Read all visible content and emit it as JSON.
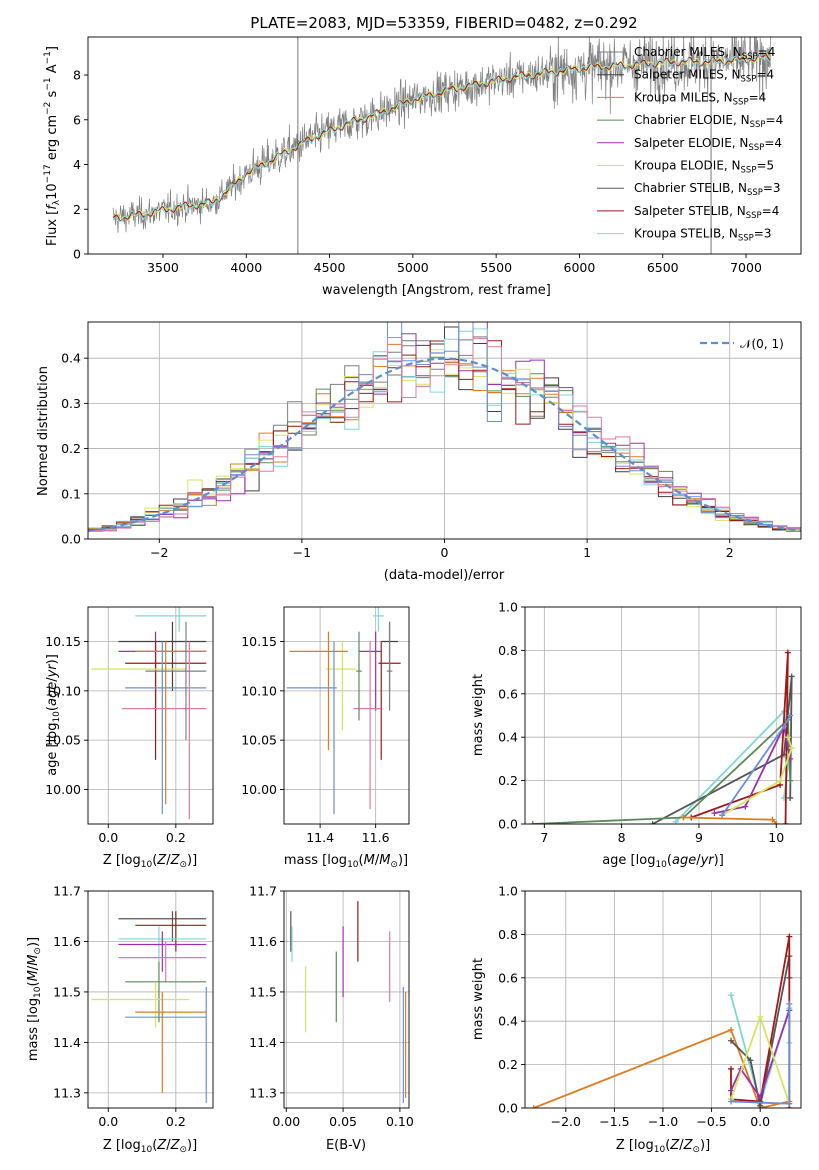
{
  "colors": {
    "Chabrier MILES": "#7f7f7f",
    "Salpeter MILES": "#404040",
    "Kroupa MILES": "#e07b1f",
    "Chabrier ELODIE": "#5b8a5b",
    "Salpeter ELODIE": "#9b30b0",
    "Kroupa ELODIE": "#d6e65c",
    "Chabrier STELIB": "#555555",
    "Salpeter STELIB": "#a01818",
    "Kroupa STELIB": "#7fd6d6",
    "extra_blue": "#6a8fd8",
    "extra_pink": "#e07aa8",
    "normal_curve": "#5b8fd0"
  },
  "chart_data": [
    {
      "id": "spectrum",
      "type": "line",
      "title": "PLATE=2083, MJD=53359, FIBERID=0482, z=0.292",
      "xlabel": "wavelength [Angstrom, rest frame]",
      "ylabel": "Flux [f_λ 10^-17 erg cm^-2 s^-1 A^-1]",
      "xlim": [
        3050,
        7330
      ],
      "ylim": [
        0,
        9.7
      ],
      "xticks": [
        "3500",
        "4000",
        "4500",
        "5000",
        "5500",
        "6000",
        "6500",
        "7000"
      ],
      "yticks": [
        "0",
        "2",
        "4",
        "6",
        "8"
      ],
      "grid": false,
      "legend_position": "right",
      "legend": [
        {
          "label": "Chabrier MILES, N",
          "sub": "SSP",
          "tail": "=4"
        },
        {
          "label": "Salpeter MILES, N",
          "sub": "SSP",
          "tail": "=4"
        },
        {
          "label": "Kroupa MILES, N",
          "sub": "SSP",
          "tail": "=4"
        },
        {
          "label": "Chabrier ELODIE, N",
          "sub": "SSP",
          "tail": "=4"
        },
        {
          "label": "Salpeter ELODIE, N",
          "sub": "SSP",
          "tail": "=4"
        },
        {
          "label": "Kroupa ELODIE, N",
          "sub": "SSP",
          "tail": "=5"
        },
        {
          "label": "Chabrier STELIB, N",
          "sub": "SSP",
          "tail": "=3"
        },
        {
          "label": "Salpeter STELIB, N",
          "sub": "SSP",
          "tail": "=4"
        },
        {
          "label": "Kroupa STELIB, N",
          "sub": "SSP",
          "tail": "=3"
        }
      ],
      "continuum": [
        [
          3200,
          1.6
        ],
        [
          3400,
          1.8
        ],
        [
          3600,
          2.1
        ],
        [
          3800,
          2.3
        ],
        [
          3900,
          2.9
        ],
        [
          4000,
          3.6
        ],
        [
          4200,
          4.4
        ],
        [
          4400,
          5.2
        ],
        [
          4600,
          5.8
        ],
        [
          4800,
          6.3
        ],
        [
          5000,
          6.9
        ],
        [
          5200,
          7.3
        ],
        [
          5400,
          7.6
        ],
        [
          5600,
          7.9
        ],
        [
          5800,
          8.1
        ],
        [
          6000,
          8.3
        ],
        [
          6200,
          8.4
        ],
        [
          6400,
          8.5
        ],
        [
          6600,
          8.6
        ],
        [
          6800,
          8.6
        ],
        [
          7000,
          8.7
        ],
        [
          7150,
          8.8
        ]
      ],
      "spikes": [
        [
          4310,
          9.7
        ],
        [
          6790,
          9.7
        ]
      ]
    },
    {
      "id": "residuals",
      "type": "histogram",
      "xlabel": "(data-model)/error",
      "ylabel": "Normed distribution",
      "xlim": [
        -2.5,
        2.5
      ],
      "ylim": [
        0,
        0.48
      ],
      "xticks": [
        "−2",
        "−1",
        "0",
        "1",
        "2"
      ],
      "yticks": [
        "0.0",
        "0.1",
        "0.2",
        "0.3",
        "0.4"
      ],
      "grid": true,
      "legend_label": "𝒩(0, 1)",
      "legend_position": "top-right",
      "bin_width": 0.1,
      "normal": {
        "mean": 0,
        "sigma": 1
      }
    },
    {
      "id": "age_vs_Z",
      "type": "errorbar",
      "xlabel": "Z [log10(Z/Z⊙)]",
      "ylabel": "age [log10(age/yr)]",
      "xlim": [
        -0.06,
        0.31
      ],
      "ylim": [
        9.965,
        10.185
      ],
      "xticks": [
        "0.0",
        "0.2"
      ],
      "yticks": [
        "10.00",
        "10.05",
        "10.10",
        "10.15"
      ],
      "grid": true,
      "points": [
        {
          "x": 0.21,
          "y": 10.176,
          "ex": [
            0.08,
            0.29
          ],
          "ey": [
            10.16,
            10.185
          ],
          "c": "Kroupa STELIB"
        },
        {
          "x": 0.19,
          "y": 10.15,
          "ex": [
            0.03,
            0.29
          ],
          "ey": [
            10.1,
            10.17
          ],
          "c": "Salpeter MILES"
        },
        {
          "x": 0.14,
          "y": 10.14,
          "ex": [
            0.03,
            0.29
          ],
          "ey": [
            10.08,
            10.16
          ],
          "c": "Salpeter ELODIE"
        },
        {
          "x": 0.14,
          "y": 10.128,
          "ex": [
            0.05,
            0.29
          ],
          "ey": [
            10.03,
            10.15
          ],
          "c": "Salpeter STELIB"
        },
        {
          "x": 0.16,
          "y": 10.122,
          "ex": [
            -0.05,
            0.23
          ],
          "ey": [
            10.06,
            10.15
          ],
          "c": "Kroupa ELODIE"
        },
        {
          "x": 0.17,
          "y": 10.14,
          "ex": [
            0.08,
            0.29
          ],
          "ey": [
            9.985,
            10.15
          ],
          "c": "Kroupa MILES"
        },
        {
          "x": 0.16,
          "y": 10.103,
          "ex": [
            0.05,
            0.29
          ],
          "ey": [
            9.975,
            10.15
          ],
          "c": "extra_blue"
        },
        {
          "x": 0.24,
          "y": 10.082,
          "ex": [
            0.04,
            0.29
          ],
          "ey": [
            9.97,
            10.15
          ],
          "c": "extra_pink"
        },
        {
          "x": 0.23,
          "y": 10.12,
          "ex": [
            0.11,
            0.29
          ],
          "ey": [
            10.05,
            10.17
          ],
          "c": "Chabrier MILES"
        }
      ]
    },
    {
      "id": "age_vs_mass",
      "type": "errorbar",
      "xlabel": "mass [log10(M/M⊙)]",
      "ylabel": "",
      "xlim": [
        11.27,
        11.72
      ],
      "ylim": [
        9.965,
        10.185
      ],
      "xticks": [
        "11.4",
        "11.6"
      ],
      "yticks": [
        "10.00",
        "10.05",
        "10.10",
        "10.15"
      ],
      "grid": true,
      "points": [
        {
          "x": 11.61,
          "y": 10.176,
          "ex": [
            11.59,
            11.63
          ],
          "ey": [
            10.16,
            10.185
          ],
          "c": "Kroupa STELIB"
        },
        {
          "x": 11.65,
          "y": 10.15,
          "ex": [
            11.62,
            11.68
          ],
          "ey": [
            10.1,
            10.17
          ],
          "c": "Salpeter MILES"
        },
        {
          "x": 11.6,
          "y": 10.14,
          "ex": [
            11.54,
            11.62
          ],
          "ey": [
            10.08,
            10.16
          ],
          "c": "Salpeter ELODIE"
        },
        {
          "x": 11.62,
          "y": 10.128,
          "ex": [
            11.61,
            11.69
          ],
          "ey": [
            10.03,
            10.15
          ],
          "c": "Salpeter STELIB"
        },
        {
          "x": 11.48,
          "y": 10.122,
          "ex": [
            11.42,
            11.53
          ],
          "ey": [
            10.06,
            10.15
          ],
          "c": "Kroupa ELODIE"
        },
        {
          "x": 11.43,
          "y": 10.14,
          "ex": [
            11.29,
            11.5
          ],
          "ey": [
            10.04,
            10.16
          ],
          "c": "Kroupa MILES"
        },
        {
          "x": 11.45,
          "y": 10.103,
          "ex": [
            11.28,
            11.46
          ],
          "ey": [
            9.975,
            10.15
          ],
          "c": "extra_blue"
        },
        {
          "x": 11.58,
          "y": 10.082,
          "ex": [
            11.52,
            11.62
          ],
          "ey": [
            9.98,
            10.15
          ],
          "c": "extra_pink"
        },
        {
          "x": 11.65,
          "y": 10.12,
          "ex": [
            11.64,
            11.66
          ],
          "ey": [
            10.08,
            10.17
          ],
          "c": "Chabrier MILES"
        },
        {
          "x": 11.54,
          "y": 10.12,
          "ex": [
            11.53,
            11.55
          ],
          "ey": [
            10.07,
            10.16
          ],
          "c": "Chabrier ELODIE"
        }
      ]
    },
    {
      "id": "mass_weight_vs_age",
      "type": "line",
      "xlabel": "age [log10(age/yr)]",
      "ylabel": "mass weight",
      "xlim": [
        6.75,
        10.32
      ],
      "ylim": [
        0,
        1.0
      ],
      "xticks": [
        "7",
        "8",
        "9",
        "10"
      ],
      "yticks": [
        "0.0",
        "0.2",
        "0.4",
        "0.6",
        "0.8",
        "1.0"
      ],
      "grid": true,
      "series": [
        {
          "c": "Kroupa STELIB",
          "x": [
            8.7,
            10.1,
            10.18,
            10.1
          ],
          "y": [
            0.01,
            0.52,
            0.35,
            0.12
          ]
        },
        {
          "c": "Chabrier STELIB",
          "x": [
            8.4,
            10.1,
            10.2,
            10.18
          ],
          "y": [
            0.0,
            0.32,
            0.68,
            0.12
          ]
        },
        {
          "c": "Chabrier ELODIE",
          "x": [
            6.85,
            8.8,
            10.15,
            10.18
          ],
          "y": [
            0.0,
            0.03,
            0.48,
            0.2
          ]
        },
        {
          "c": "Salpeter STELIB",
          "x": [
            8.9,
            10.05,
            10.15,
            10.12
          ],
          "y": [
            0.03,
            0.18,
            0.79,
            0.0
          ]
        },
        {
          "c": "Kroupa MILES",
          "x": [
            8.8,
            9.95,
            10.0
          ],
          "y": [
            0.03,
            0.02,
            0.0
          ]
        },
        {
          "c": "Salpeter ELODIE",
          "x": [
            9.2,
            9.6,
            10.1,
            10.18
          ],
          "y": [
            0.05,
            0.08,
            0.45,
            0.3
          ]
        },
        {
          "c": "Kroupa ELODIE",
          "x": [
            9.3,
            10.05,
            10.2,
            10.15
          ],
          "y": [
            0.04,
            0.2,
            0.35,
            0.4
          ]
        },
        {
          "c": "extra_blue",
          "x": [
            9.3,
            10.1,
            10.18
          ],
          "y": [
            0.04,
            0.45,
            0.5
          ]
        }
      ]
    },
    {
      "id": "mass_vs_Z",
      "type": "errorbar",
      "xlabel": "Z [log10(Z/Z⊙)]",
      "ylabel": "mass [log10(M/M⊙)]",
      "xlim": [
        -0.06,
        0.31
      ],
      "ylim": [
        11.27,
        11.7
      ],
      "xticks": [
        "0.0",
        "0.2"
      ],
      "yticks": [
        "11.3",
        "11.4",
        "11.5",
        "11.6",
        "11.7"
      ],
      "grid": true,
      "points": [
        {
          "x": 0.19,
          "y": 11.645,
          "ex": [
            0.03,
            0.29
          ],
          "ey": [
            11.6,
            11.66
          ],
          "c": "Chabrier STELIB"
        },
        {
          "x": 0.2,
          "y": 11.632,
          "ex": [
            0.08,
            0.29
          ],
          "ey": [
            11.58,
            11.66
          ],
          "c": "Salpeter STELIB"
        },
        {
          "x": 0.15,
          "y": 11.605,
          "ex": [
            0.03,
            0.29
          ],
          "ey": [
            11.56,
            11.63
          ],
          "c": "Kroupa STELIB"
        },
        {
          "x": 0.16,
          "y": 11.594,
          "ex": [
            0.03,
            0.29
          ],
          "ey": [
            11.54,
            11.62
          ],
          "c": "Salpeter ELODIE"
        },
        {
          "x": 0.17,
          "y": 11.568,
          "ex": [
            0.03,
            0.29
          ],
          "ey": [
            11.52,
            11.6
          ],
          "c": "extra_pink"
        },
        {
          "x": 0.15,
          "y": 11.52,
          "ex": [
            0.05,
            0.29
          ],
          "ey": [
            11.44,
            11.56
          ],
          "c": "Chabrier ELODIE"
        },
        {
          "x": 0.14,
          "y": 11.485,
          "ex": [
            -0.05,
            0.24
          ],
          "ey": [
            11.43,
            11.52
          ],
          "c": "Kroupa ELODIE"
        },
        {
          "x": 0.16,
          "y": 11.46,
          "ex": [
            0.08,
            0.29
          ],
          "ey": [
            11.3,
            11.5
          ],
          "c": "Kroupa MILES"
        },
        {
          "x": 0.29,
          "y": 11.45,
          "ex": [
            0.05,
            0.29
          ],
          "ey": [
            11.28,
            11.51
          ],
          "c": "extra_blue"
        }
      ]
    },
    {
      "id": "mass_vs_ebv",
      "type": "errorbar",
      "xlabel": "E(B-V)",
      "ylabel": "",
      "xlim": [
        -0.002,
        0.108
      ],
      "ylim": [
        11.27,
        11.7
      ],
      "xticks": [
        "0.00",
        "0.05",
        "0.10"
      ],
      "yticks": [
        "11.3",
        "11.4",
        "11.5",
        "11.6",
        "11.7"
      ],
      "grid": true,
      "points": [
        {
          "x": 0.004,
          "y": 11.62,
          "ex": [
            0.004,
            0.004
          ],
          "ey": [
            11.58,
            11.66
          ],
          "c": "Chabrier STELIB"
        },
        {
          "x": 0.005,
          "y": 11.59,
          "ex": [
            0.005,
            0.005
          ],
          "ey": [
            11.56,
            11.63
          ],
          "c": "Kroupa STELIB"
        },
        {
          "x": 0.017,
          "y": 11.49,
          "ex": [
            0.017,
            0.017
          ],
          "ey": [
            11.42,
            11.55
          ],
          "c": "Kroupa ELODIE"
        },
        {
          "x": 0.044,
          "y": 11.51,
          "ex": [
            0.044,
            0.044
          ],
          "ey": [
            11.44,
            11.58
          ],
          "c": "Chabrier ELODIE"
        },
        {
          "x": 0.05,
          "y": 11.56,
          "ex": [
            0.05,
            0.05
          ],
          "ey": [
            11.49,
            11.63
          ],
          "c": "Salpeter ELODIE"
        },
        {
          "x": 0.063,
          "y": 11.63,
          "ex": [
            0.063,
            0.063
          ],
          "ey": [
            11.56,
            11.68
          ],
          "c": "Salpeter STELIB"
        },
        {
          "x": 0.091,
          "y": 11.56,
          "ex": [
            0.091,
            0.091
          ],
          "ey": [
            11.48,
            11.62
          ],
          "c": "extra_pink"
        },
        {
          "x": 0.103,
          "y": 11.42,
          "ex": [
            0.103,
            0.103
          ],
          "ey": [
            11.28,
            11.51
          ],
          "c": "extra_blue"
        },
        {
          "x": 0.105,
          "y": 11.4,
          "ex": [
            0.105,
            0.105
          ],
          "ey": [
            11.29,
            11.5
          ],
          "c": "Kroupa MILES"
        }
      ]
    },
    {
      "id": "mass_weight_vs_Z",
      "type": "line",
      "xlabel": "Z [log10(Z/Z⊙)]",
      "ylabel": "mass weight",
      "xlim": [
        -2.42,
        0.42
      ],
      "ylim": [
        0,
        1.0
      ],
      "xticks": [
        "−2.0",
        "−1.5",
        "−1.0",
        "−0.5",
        "0.0"
      ],
      "yticks": [
        "0.0",
        "0.2",
        "0.4",
        "0.6",
        "0.8",
        "1.0"
      ],
      "grid": true,
      "series": [
        {
          "c": "Kroupa MILES",
          "x": [
            -2.33,
            -0.3,
            0.0,
            0.3
          ],
          "y": [
            0.0,
            0.36,
            0.0,
            0.03
          ]
        },
        {
          "c": "Kroupa STELIB",
          "x": [
            -0.3,
            0.0,
            0.3,
            0.3
          ],
          "y": [
            0.52,
            0.02,
            0.46,
            0.3
          ]
        },
        {
          "c": "Chabrier STELIB",
          "x": [
            -0.3,
            -0.1,
            0.0,
            0.3,
            0.3
          ],
          "y": [
            0.31,
            0.22,
            0.01,
            0.7,
            0.6
          ]
        },
        {
          "c": "Salpeter STELIB",
          "x": [
            -0.3,
            -0.3,
            0.0,
            0.3,
            0.3
          ],
          "y": [
            0.18,
            0.04,
            0.03,
            0.79,
            0.0
          ]
        },
        {
          "c": "Salpeter ELODIE",
          "x": [
            -0.3,
            -0.2,
            0.0,
            0.3
          ],
          "y": [
            0.08,
            0.18,
            0.05,
            0.45
          ]
        },
        {
          "c": "Kroupa ELODIE",
          "x": [
            -0.3,
            0.0,
            0.3
          ],
          "y": [
            0.04,
            0.42,
            0.02
          ]
        },
        {
          "c": "extra_blue",
          "x": [
            -0.3,
            0.3,
            0.3
          ],
          "y": [
            0.03,
            0.02,
            0.48
          ]
        }
      ]
    }
  ]
}
